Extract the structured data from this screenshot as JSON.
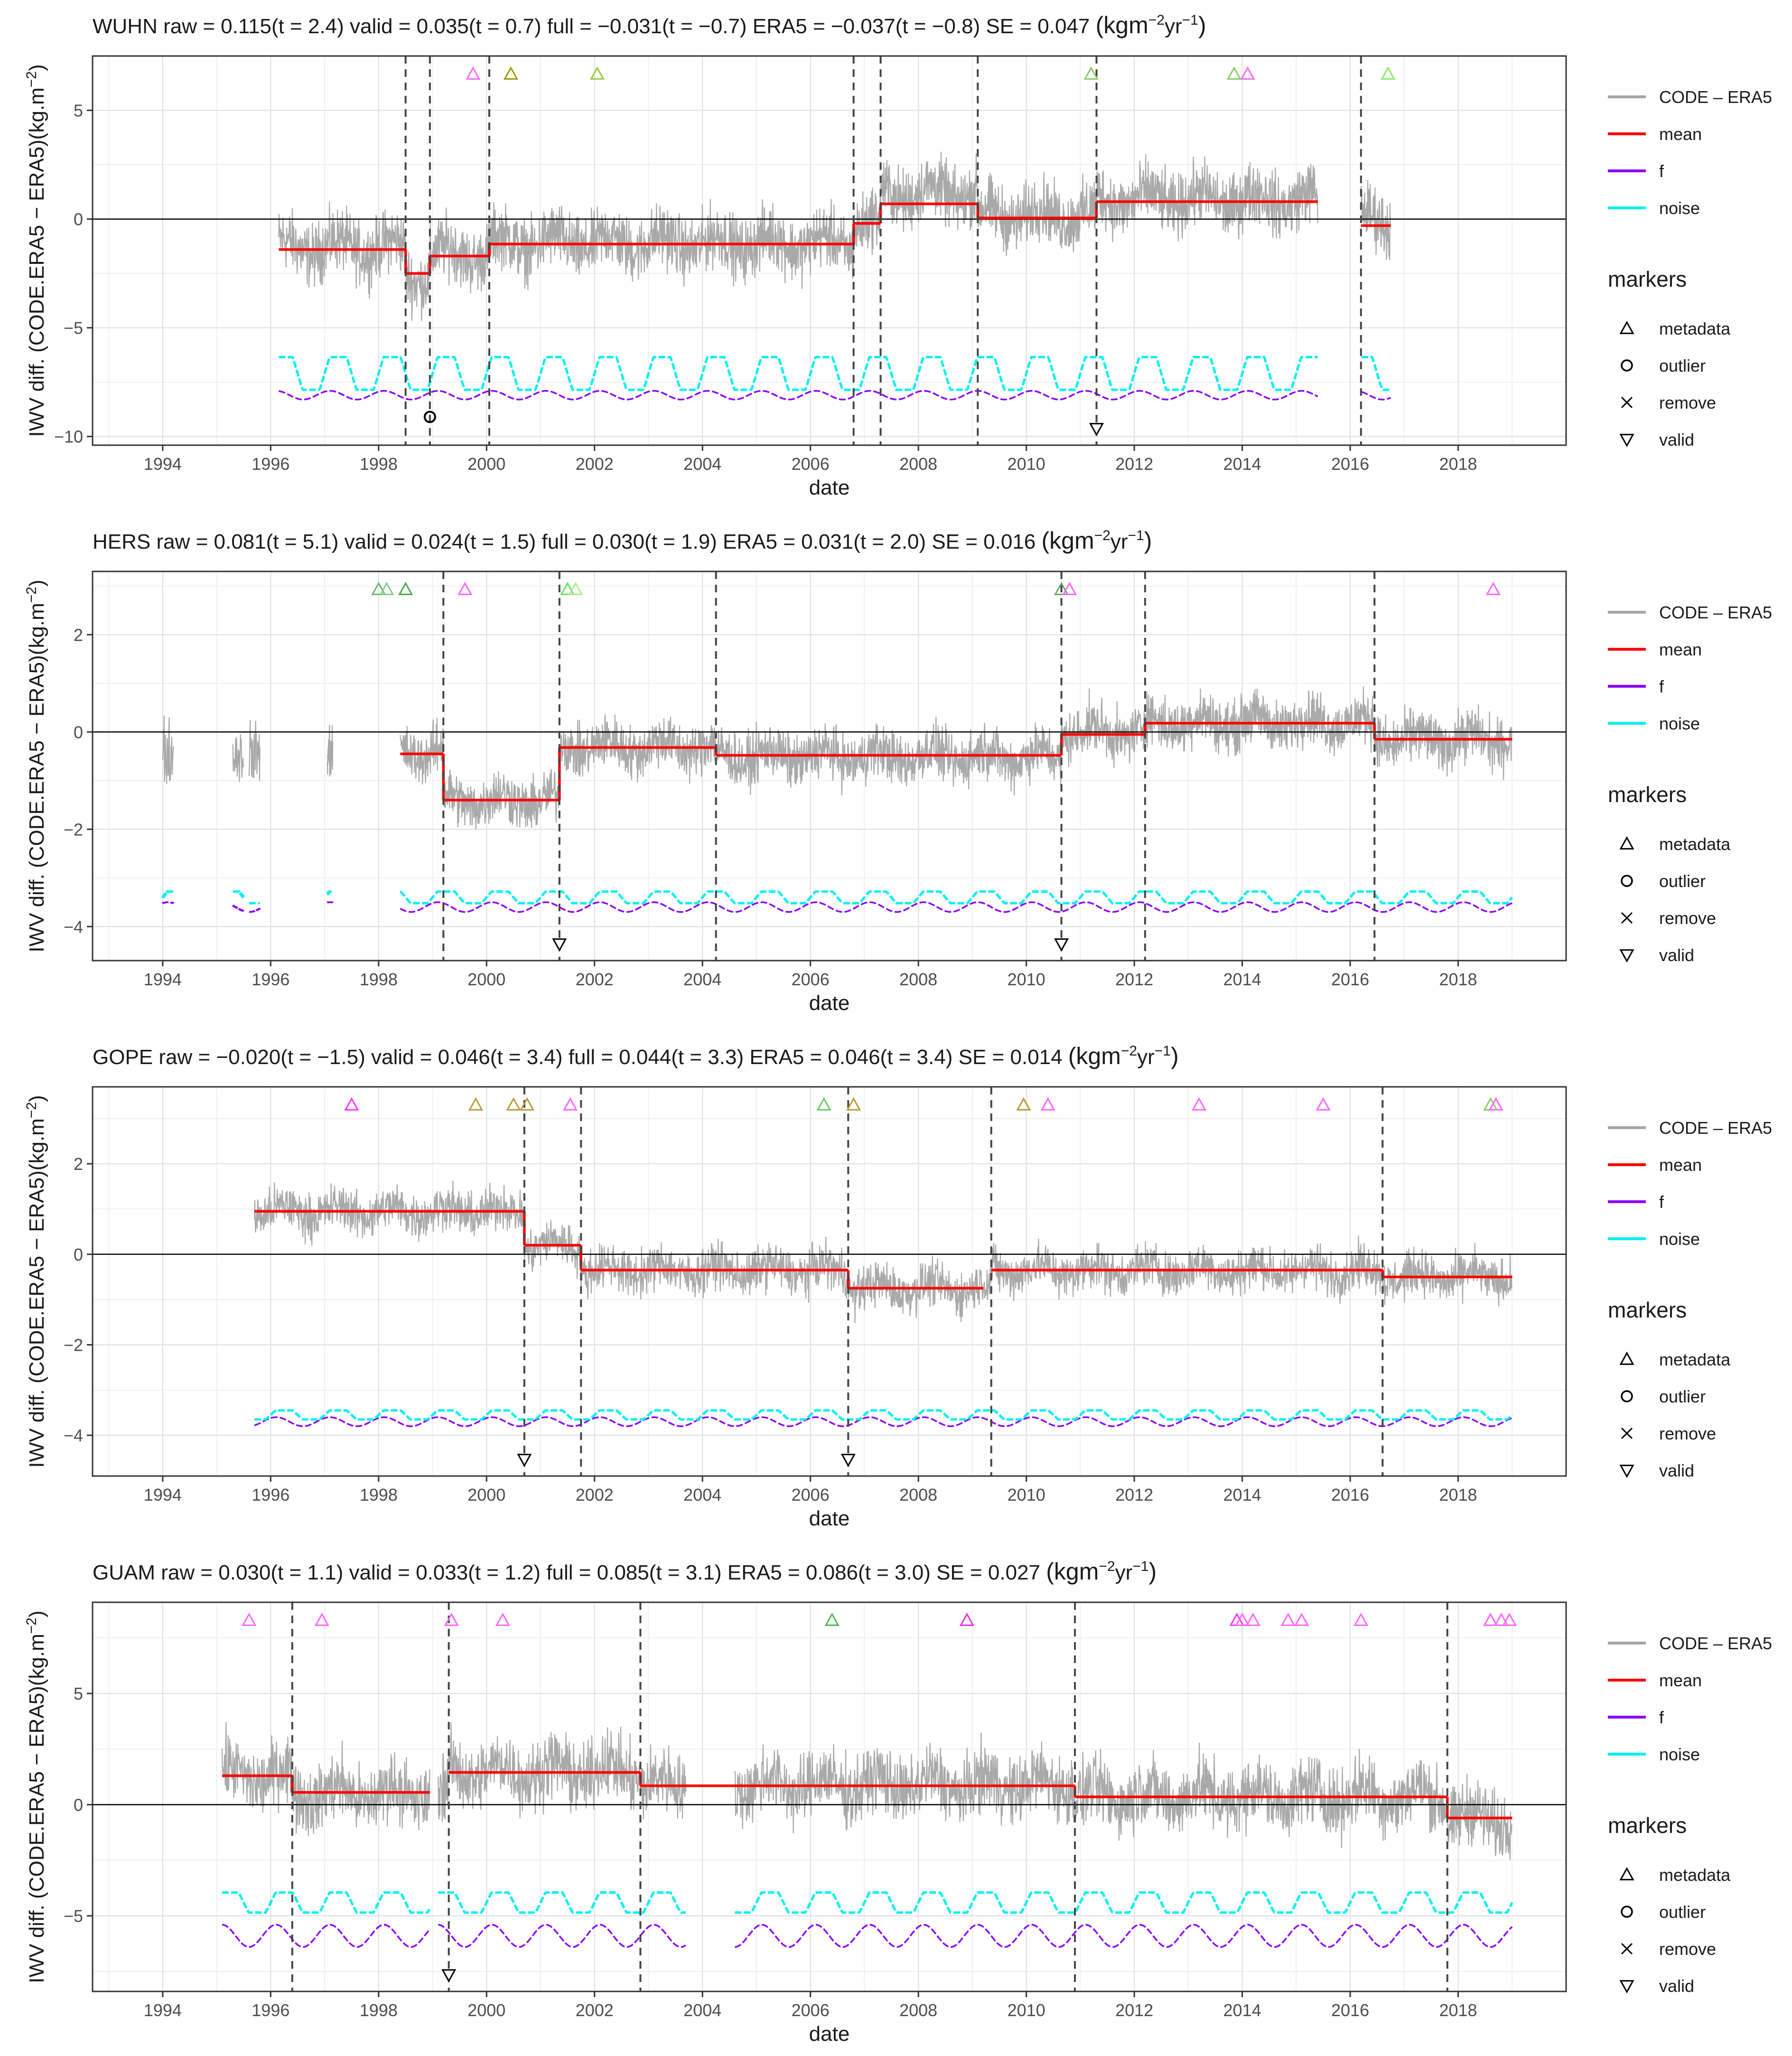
{
  "figure": {
    "unit_superscript": "−1",
    "unit_superscript_m": "−2"
  },
  "legend": {
    "items": [
      {
        "label": "CODE – ERA5",
        "color": "#a6a6a6"
      },
      {
        "label": "mean",
        "color": "#ff0000"
      },
      {
        "label": "f",
        "color": "#8b00ff"
      },
      {
        "label": "noise",
        "color": "#00f0f0"
      }
    ],
    "markers_title": "markers",
    "markers": [
      {
        "label": "metadata",
        "icon": "triangle-up-icon"
      },
      {
        "label": "outlier",
        "icon": "circle-icon"
      },
      {
        "label": "remove",
        "icon": "cross-icon"
      },
      {
        "label": "valid",
        "icon": "triangle-down-icon"
      }
    ]
  },
  "chart_data": [
    {
      "type": "line",
      "title": "WUHN  raw =  0.115(t = 2.4)  valid =  0.035(t = 0.7)  full =  −0.031(t = −0.7)  ERA5 =  −0.037(t = −0.8)  SE = 0.047 (kgm⁻²yr⁻¹)",
      "title_main": "WUHN  raw =  0.115(t = 2.4)  valid =  0.035(t = 0.7)  full =  −0.031(t = −0.7)  ERA5 =  −0.037(t = −0.8)  SE = 0.047 ",
      "title_unit": "(kgm",
      "title_unit2": "yr",
      "title_unit3": ")",
      "xlabel": "date",
      "ylabel": "IWV diff. (CODE.ERA5 − ERA5)(kg.m",
      "ylabel_sup": "−2",
      "ylabel_end": ")",
      "xlim": [
        1992.7,
        2020.0
      ],
      "ylim": [
        -10.4,
        7.5
      ],
      "yticks": [
        -10,
        -5,
        0,
        5
      ],
      "ytick_labels": [
        "−10",
        "−5",
        "0",
        "5"
      ],
      "xticks": [
        1994,
        1996,
        1998,
        2000,
        2002,
        2004,
        2006,
        2008,
        2010,
        2012,
        2014,
        2016,
        2018
      ],
      "xtick_labels": [
        "1994",
        "1996",
        "1998",
        "2000",
        "2002",
        "2004",
        "2006",
        "2008",
        "2010",
        "2012",
        "2014",
        "2016",
        "2018"
      ],
      "data_span": [
        1996.15,
        2016.75
      ],
      "gaps": [
        [
          2015.4,
          2016.2
        ]
      ],
      "diff_noise": 1.6,
      "diff_segments": [
        [
          1996.15,
          1998.5,
          -1.3
        ],
        [
          1998.5,
          1998.95,
          -2.6
        ],
        [
          1998.95,
          2000.05,
          -1.6
        ],
        [
          2000.05,
          2006.8,
          -1.1
        ],
        [
          2006.8,
          2007.3,
          -0.2
        ],
        [
          2007.3,
          2009.1,
          1.2
        ],
        [
          2009.1,
          2011.3,
          0.2
        ],
        [
          2011.3,
          2015.4,
          0.9
        ],
        [
          2016.2,
          2016.75,
          0
        ]
      ],
      "mean_segments": [
        [
          1996.15,
          1998.5,
          -1.4
        ],
        [
          1998.5,
          1998.95,
          -2.5
        ],
        [
          1998.95,
          2000.05,
          -1.7
        ],
        [
          2000.05,
          2006.8,
          -1.15
        ],
        [
          2006.8,
          2007.3,
          -0.2
        ],
        [
          2007.3,
          2009.1,
          0.7
        ],
        [
          2009.1,
          2011.3,
          0.05
        ],
        [
          2011.3,
          2015.4,
          0.8
        ],
        [
          2016.2,
          2016.75,
          -0.3
        ]
      ],
      "noise_band": {
        "center": -7.1,
        "amp": 0.75
      },
      "f_band": {
        "center": -8.1,
        "amp": 0.2
      },
      "breakpoints": [
        1998.5,
        1998.95,
        2000.05,
        2006.8,
        2007.3,
        2009.1,
        2011.3,
        2016.2
      ],
      "metadata_markers": [
        {
          "x": 1999.75,
          "color": "#ff66ff"
        },
        {
          "x": 2000.45,
          "color": "#999900"
        },
        {
          "x": 2002.05,
          "color": "#99cc33"
        },
        {
          "x": 2011.2,
          "color": "#88cc66"
        },
        {
          "x": 2013.85,
          "color": "#88cc66"
        },
        {
          "x": 2014.1,
          "color": "#ff66ff"
        },
        {
          "x": 2016.7,
          "color": "#88ee66"
        }
      ],
      "outliers": [
        {
          "x": 1998.95,
          "y": -9.1
        }
      ],
      "valid_markers": [
        2011.3
      ]
    },
    {
      "type": "line",
      "title": "HERS  raw =  0.081(t = 5.1)  valid =  0.024(t = 1.5)  full =  0.030(t = 1.9)  ERA5 =  0.031(t = 2.0)  SE = 0.016 (kgm⁻²yr⁻¹)",
      "title_main": "HERS  raw =  0.081(t = 5.1)  valid =  0.024(t = 1.5)  full =  0.030(t = 1.9)  ERA5 =  0.031(t = 2.0)  SE = 0.016 ",
      "title_unit": "(kgm",
      "title_unit2": "yr",
      "title_unit3": ")",
      "xlabel": "date",
      "ylabel": "IWV diff. (CODE.ERA5 − ERA5)(kg.m",
      "ylabel_sup": "−2",
      "ylabel_end": ")",
      "xlim": [
        1992.7,
        2020.0
      ],
      "ylim": [
        -4.7,
        3.3
      ],
      "yticks": [
        -4,
        -2,
        0,
        2
      ],
      "ytick_labels": [
        "−4",
        "−2",
        "0",
        "2"
      ],
      "xticks": [
        1994,
        1996,
        1998,
        2000,
        2002,
        2004,
        2006,
        2008,
        2010,
        2012,
        2014,
        2016,
        2018
      ],
      "xtick_labels": [
        "1994",
        "1996",
        "1998",
        "2000",
        "2002",
        "2004",
        "2006",
        "2008",
        "2010",
        "2012",
        "2014",
        "2016",
        "2018"
      ],
      "data_span": [
        1998.4,
        2019.0
      ],
      "isolated_spans": [
        [
          1994.0,
          1994.2
        ],
        [
          1995.3,
          1995.5
        ],
        [
          1995.6,
          1995.8
        ],
        [
          1997.05,
          1997.15
        ]
      ],
      "gaps": [],
      "diff_noise": 0.6,
      "diff_segments": [
        [
          1998.4,
          1999.2,
          -0.4
        ],
        [
          1999.2,
          2001.35,
          -1.4
        ],
        [
          2001.35,
          2004.25,
          -0.3
        ],
        [
          2004.25,
          2010.65,
          -0.5
        ],
        [
          2010.65,
          2012.2,
          0
        ],
        [
          2012.2,
          2016.45,
          0.2
        ],
        [
          2016.45,
          2019.0,
          -0.15
        ]
      ],
      "mean_segments": [
        [
          1998.4,
          1999.2,
          -0.45
        ],
        [
          1999.2,
          2001.35,
          -1.4
        ],
        [
          2001.35,
          2004.25,
          -0.32
        ],
        [
          2004.25,
          2010.65,
          -0.48
        ],
        [
          2010.65,
          2012.2,
          -0.05
        ],
        [
          2012.2,
          2016.45,
          0.18
        ],
        [
          2016.45,
          2019.0,
          -0.15
        ]
      ],
      "noise_band": {
        "center": -3.4,
        "amp": 0.12
      },
      "f_band": {
        "center": -3.6,
        "amp": 0.1
      },
      "breakpoints": [
        1999.2,
        2001.35,
        2004.25,
        2010.65,
        2012.2,
        2016.45
      ],
      "metadata_markers": [
        {
          "x": 1998.0,
          "color": "#66bb66"
        },
        {
          "x": 1998.15,
          "color": "#88cc88"
        },
        {
          "x": 1998.5,
          "color": "#44aa44"
        },
        {
          "x": 1999.6,
          "color": "#ff66ff"
        },
        {
          "x": 2001.5,
          "color": "#66dd66"
        },
        {
          "x": 2001.65,
          "color": "#aaee88"
        },
        {
          "x": 2010.65,
          "color": "#66aa66"
        },
        {
          "x": 2010.8,
          "color": "#ff66ff"
        },
        {
          "x": 2018.65,
          "color": "#ff66ff"
        }
      ],
      "outliers": [],
      "valid_markers": [
        2001.35,
        2010.65
      ]
    },
    {
      "type": "line",
      "title": "GOPE  raw =  −0.020(t = −1.5)  valid =  0.046(t = 3.4)  full =  0.044(t = 3.3)  ERA5 =  0.046(t = 3.4)  SE = 0.014 (kgm⁻²yr⁻¹)",
      "title_main": "GOPE  raw =  −0.020(t = −1.5)  valid =  0.046(t = 3.4)  full =  0.044(t = 3.3)  ERA5 =  0.046(t = 3.4)  SE = 0.014 ",
      "title_unit": "(kgm",
      "title_unit2": "yr",
      "title_unit3": ")",
      "xlabel": "date",
      "ylabel": "IWV diff. (CODE.ERA5 − ERA5)(kg.m",
      "ylabel_sup": "−2",
      "ylabel_end": ")",
      "xlim": [
        1992.7,
        2020.0
      ],
      "ylim": [
        -4.9,
        3.7
      ],
      "yticks": [
        -4,
        -2,
        0,
        2
      ],
      "ytick_labels": [
        "−4",
        "−2",
        "0",
        "2"
      ],
      "xticks": [
        1994,
        1996,
        1998,
        2000,
        2002,
        2004,
        2006,
        2008,
        2010,
        2012,
        2014,
        2016,
        2018
      ],
      "xtick_labels": [
        "1994",
        "1996",
        "1998",
        "2000",
        "2002",
        "2004",
        "2006",
        "2008",
        "2010",
        "2012",
        "2014",
        "2016",
        "2018"
      ],
      "data_span": [
        1995.7,
        2019.0
      ],
      "gaps": [],
      "diff_noise": 0.55,
      "diff_segments": [
        [
          1995.7,
          2000.7,
          0.95
        ],
        [
          2000.7,
          2001.75,
          0.2
        ],
        [
          2001.75,
          2006.7,
          -0.35
        ],
        [
          2006.7,
          2009.35,
          -0.75
        ],
        [
          2009.35,
          2016.6,
          -0.35
        ],
        [
          2016.6,
          2019.0,
          -0.5
        ]
      ],
      "mean_segments": [
        [
          1995.7,
          2000.7,
          0.95
        ],
        [
          2000.7,
          2001.75,
          0.2
        ],
        [
          2001.75,
          2006.7,
          -0.35
        ],
        [
          2006.7,
          2009.2,
          -0.75
        ],
        [
          2009.35,
          2016.6,
          -0.35
        ],
        [
          2016.6,
          2019.0,
          -0.5
        ]
      ],
      "noise_band": {
        "center": -3.55,
        "amp": 0.1
      },
      "f_band": {
        "center": -3.7,
        "amp": 0.1
      },
      "breakpoints": [
        2000.7,
        2001.75,
        2006.7,
        2009.35,
        2016.6
      ],
      "metadata_markers": [
        {
          "x": 1997.5,
          "color": "#ff33ff"
        },
        {
          "x": 1999.8,
          "color": "#bb9933"
        },
        {
          "x": 2000.5,
          "color": "#bb9933"
        },
        {
          "x": 2000.75,
          "color": "#bb9933"
        },
        {
          "x": 2001.55,
          "color": "#ff66ff"
        },
        {
          "x": 2006.25,
          "color": "#66cc66"
        },
        {
          "x": 2006.8,
          "color": "#bb9933"
        },
        {
          "x": 2009.95,
          "color": "#bb9933"
        },
        {
          "x": 2010.4,
          "color": "#ff66ff"
        },
        {
          "x": 2013.2,
          "color": "#ff66ff"
        },
        {
          "x": 2015.5,
          "color": "#ff66ff"
        },
        {
          "x": 2018.6,
          "color": "#88cc66"
        },
        {
          "x": 2018.7,
          "color": "#ff66ff"
        }
      ],
      "outliers": [],
      "valid_markers": [
        2000.7,
        2006.7
      ]
    },
    {
      "type": "line",
      "title": "GUAM  raw =  0.030(t = 1.1)  valid =  0.033(t = 1.2)  full =  0.085(t = 3.1)  ERA5 =  0.086(t = 3.0)  SE = 0.027 (kgm⁻²yr⁻¹)",
      "title_main": "GUAM  raw =  0.030(t = 1.1)  valid =  0.033(t = 1.2)  full =  0.085(t = 3.1)  ERA5 =  0.086(t = 3.0)  SE = 0.027 ",
      "title_unit": "(kgm",
      "title_unit2": "yr",
      "title_unit3": ")",
      "xlabel": "date",
      "ylabel": "IWV diff. (CODE.ERA5 − ERA5)(kg.m",
      "ylabel_sup": "−2",
      "ylabel_end": ")",
      "xlim": [
        1992.7,
        2020.0
      ],
      "ylim": [
        -8.4,
        9.1
      ],
      "yticks": [
        -5,
        0,
        5
      ],
      "ytick_labels": [
        "−5",
        "0",
        "5"
      ],
      "xticks": [
        1994,
        1996,
        1998,
        2000,
        2002,
        2004,
        2006,
        2008,
        2010,
        2012,
        2014,
        2016,
        2018
      ],
      "xtick_labels": [
        "1994",
        "1996",
        "1998",
        "2000",
        "2002",
        "2004",
        "2006",
        "2008",
        "2010",
        "2012",
        "2014",
        "2016",
        "2018"
      ],
      "data_span": [
        1995.1,
        2019.0
      ],
      "gaps": [
        [
          2003.7,
          2004.6
        ],
        [
          1998.95,
          1999.1
        ]
      ],
      "diff_noise": 1.7,
      "diff_segments": [
        [
          1995.1,
          1996.4,
          1.3
        ],
        [
          1996.4,
          1999.3,
          0.5
        ],
        [
          1999.3,
          2002.85,
          1.5
        ],
        [
          2002.85,
          2010.9,
          0.9
        ],
        [
          2010.9,
          2017.8,
          0.4
        ],
        [
          2017.8,
          2019.0,
          -0.6
        ]
      ],
      "mean_segments": [
        [
          1995.1,
          1996.4,
          1.3
        ],
        [
          1996.4,
          1998.95,
          0.55
        ],
        [
          1999.3,
          2002.85,
          1.45
        ],
        [
          2002.85,
          2010.9,
          0.85
        ],
        [
          2010.9,
          2017.8,
          0.35
        ],
        [
          2017.8,
          2019.0,
          -0.6
        ]
      ],
      "noise_band": {
        "center": -4.4,
        "amp": 0.45
      },
      "f_band": {
        "center": -5.9,
        "amp": 0.5
      },
      "breakpoints": [
        1996.4,
        1999.3,
        2002.85,
        2010.9,
        2017.8
      ],
      "metadata_markers": [
        {
          "x": 1995.6,
          "color": "#ff66ff"
        },
        {
          "x": 1996.95,
          "color": "#ff66ff"
        },
        {
          "x": 1999.35,
          "color": "#ff66ff"
        },
        {
          "x": 2000.3,
          "color": "#ff66ff"
        },
        {
          "x": 2006.4,
          "color": "#44bb44"
        },
        {
          "x": 2008.9,
          "color": "#dd33dd"
        },
        {
          "x": 2013.9,
          "color": "#ff33ff"
        },
        {
          "x": 2014.0,
          "color": "#ff66ff"
        },
        {
          "x": 2014.2,
          "color": "#ff66ff"
        },
        {
          "x": 2014.85,
          "color": "#ff66ff"
        },
        {
          "x": 2015.1,
          "color": "#ff66ff"
        },
        {
          "x": 2016.2,
          "color": "#ff66ff"
        },
        {
          "x": 2018.6,
          "color": "#ff66ff"
        },
        {
          "x": 2018.8,
          "color": "#ff66ff"
        },
        {
          "x": 2018.95,
          "color": "#ff66ff"
        }
      ],
      "outliers": [],
      "valid_markers": [
        1999.3
      ]
    }
  ]
}
